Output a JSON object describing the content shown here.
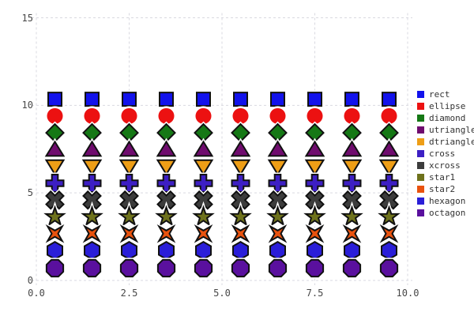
{
  "chart_data": {
    "type": "scatter",
    "title": "",
    "xlabel": "",
    "ylabel": "",
    "x": [
      0.5,
      1.5,
      2.5,
      3.5,
      4.5,
      5.5,
      6.5,
      7.5,
      8.5,
      9.5
    ],
    "series": [
      {
        "name": "rect",
        "marker": "rect",
        "color": "#1212EC",
        "y": 10.35
      },
      {
        "name": "ellipse",
        "marker": "ellipse",
        "color": "#EC1111",
        "y": 9.39
      },
      {
        "name": "diamond",
        "marker": "diamond",
        "color": "#157815",
        "y": 8.43
      },
      {
        "name": "utriangle",
        "marker": "utriangle",
        "color": "#6F0B6E",
        "y": 7.47
      },
      {
        "name": "dtriangle",
        "marker": "dtriangle",
        "color": "#EE9E16",
        "y": 6.51
      },
      {
        "name": "cross",
        "marker": "cross",
        "color": "#3D1FC4",
        "y": 5.55
      },
      {
        "name": "xcross",
        "marker": "xcross",
        "color": "#3C3C3C",
        "y": 4.59
      },
      {
        "name": "star1",
        "marker": "star1",
        "color": "#6E721C",
        "y": 3.63
      },
      {
        "name": "star2",
        "marker": "star2",
        "color": "#E9520E",
        "y": 2.67
      },
      {
        "name": "hexagon",
        "marker": "hexagon",
        "color": "#2A1ED8",
        "y": 1.71
      },
      {
        "name": "octagon",
        "marker": "octagon",
        "color": "#5A109E",
        "y": 0.7
      }
    ],
    "xlim": [
      0,
      10
    ],
    "ylim": [
      0,
      15
    ],
    "xticks": {
      "values": [
        0,
        2.5,
        5,
        7.5,
        10
      ],
      "labels": [
        "0.0",
        "2.5",
        "5.0",
        "7.5",
        "10.0"
      ]
    },
    "yticks": {
      "values": [
        0,
        5,
        10,
        15
      ],
      "labels": [
        "0",
        "5",
        "10",
        "15"
      ]
    },
    "grid": {
      "on": true,
      "style": "dashed",
      "color": "#D9D9E0"
    },
    "legend_position": "right",
    "marker_outline_color": "#111111",
    "marker_halo_color": "#FFFFFF"
  }
}
